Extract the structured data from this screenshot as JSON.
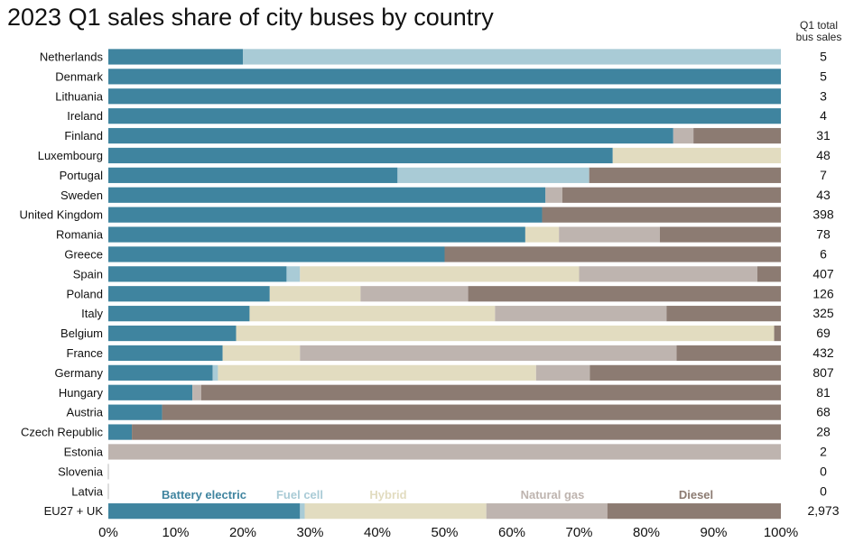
{
  "chart_data": {
    "type": "bar",
    "orientation": "horizontal",
    "stacked": "100%",
    "title": "2023 Q1 sales share of city buses by country",
    "total_header": [
      "Q1 total",
      "bus sales"
    ],
    "xlim": [
      0,
      100
    ],
    "x_ticks": [
      "0%",
      "10%",
      "20%",
      "30%",
      "40%",
      "50%",
      "60%",
      "70%",
      "80%",
      "90%",
      "100%"
    ],
    "categories": [
      "Netherlands",
      "Denmark",
      "Lithuania",
      "Ireland",
      "Finland",
      "Luxembourg",
      "Portugal",
      "Sweden",
      "United Kingdom",
      "Romania",
      "Greece",
      "Spain",
      "Poland",
      "Italy",
      "Belgium",
      "France",
      "Germany",
      "Hungary",
      "Austria",
      "Czech Republic",
      "Estonia",
      "Slovenia",
      "Latvia",
      "EU27 + UK"
    ],
    "totals": [
      "5",
      "5",
      "3",
      "4",
      "31",
      "48",
      "7",
      "43",
      "398",
      "78",
      "6",
      "407",
      "126",
      "325",
      "69",
      "432",
      "807",
      "81",
      "68",
      "28",
      "2",
      "0",
      "0",
      "2,973"
    ],
    "series": [
      {
        "name": "Battery electric",
        "color": "#3f849f",
        "values": [
          20,
          100,
          100,
          100,
          84,
          75,
          43,
          65,
          64.5,
          62,
          50,
          26.5,
          24,
          21,
          19,
          17,
          15.5,
          12.5,
          8,
          3.5,
          0,
          0,
          0,
          28.5
        ]
      },
      {
        "name": "Fuel cell",
        "color": "#a9cbd6",
        "values": [
          80,
          0,
          0,
          0,
          0,
          0,
          28.5,
          0,
          0,
          0,
          0,
          2,
          0,
          0,
          0,
          0,
          0.8,
          0,
          0,
          0,
          0,
          0,
          0,
          0.7
        ]
      },
      {
        "name": "Hybrid",
        "color": "#e2dcc0",
        "values": [
          0,
          0,
          0,
          0,
          0,
          25,
          0,
          0,
          0,
          5,
          0,
          41.5,
          13.5,
          36.5,
          80,
          11.5,
          47.3,
          0,
          0,
          0,
          0,
          0,
          0,
          27
        ]
      },
      {
        "name": "Natural gas",
        "color": "#beb4af",
        "values": [
          0,
          0,
          0,
          0,
          3,
          0,
          0,
          2.5,
          0,
          15,
          0,
          26.5,
          16,
          25.5,
          0,
          56,
          8,
          1.3,
          0,
          0,
          100,
          0,
          0,
          18
        ]
      },
      {
        "name": "Diesel",
        "color": "#8c7b72",
        "values": [
          0,
          0,
          0,
          0,
          13,
          0,
          28.5,
          32.5,
          35.5,
          18,
          50,
          3.5,
          46.5,
          17,
          1,
          15.5,
          28.4,
          86.2,
          92,
          96.5,
          0,
          0,
          0,
          25.8
        ]
      }
    ]
  }
}
